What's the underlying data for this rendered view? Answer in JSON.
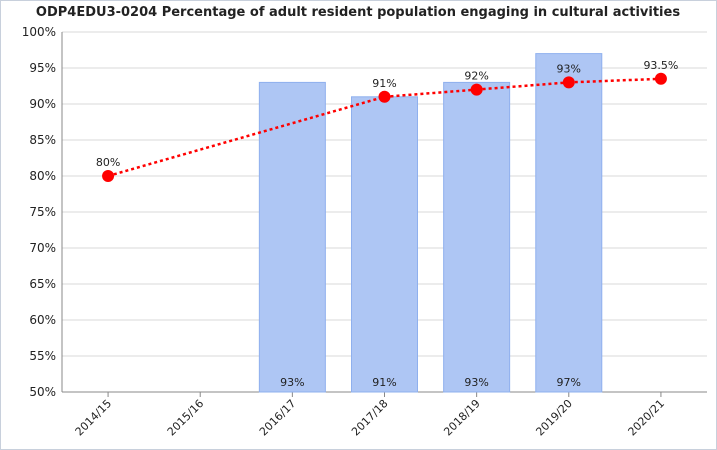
{
  "chart_data": {
    "type": "bar_line",
    "title": "ODP4EDU3-0204 Percentage of adult resident population engaging in cultural activities",
    "categories": [
      "2014/15",
      "2015/16",
      "2016/17",
      "2017/18",
      "2018/19",
      "2019/20",
      "2020/21"
    ],
    "series": [
      {
        "type": "bar",
        "color": "#aec6f4",
        "values": [
          null,
          null,
          93,
          91,
          93,
          97,
          null
        ],
        "value_labels": [
          null,
          null,
          "93%",
          "91%",
          "93%",
          "97%",
          null
        ]
      },
      {
        "type": "line",
        "color": "#ff0000",
        "values": [
          80,
          null,
          null,
          91,
          92,
          93,
          93.5
        ],
        "value_labels": [
          "80%",
          null,
          null,
          "91%",
          "92%",
          "93%",
          "93.5%"
        ]
      }
    ],
    "ylim": [
      50,
      100
    ],
    "yticks": [
      {
        "value": 50,
        "label": "50%"
      },
      {
        "value": 55,
        "label": "55%"
      },
      {
        "value": 60,
        "label": "60%"
      },
      {
        "value": 65,
        "label": "65%"
      },
      {
        "value": 70,
        "label": "70%"
      },
      {
        "value": 75,
        "label": "75%"
      },
      {
        "value": 80,
        "label": "80%"
      },
      {
        "value": 85,
        "label": "85%"
      },
      {
        "value": 90,
        "label": "90%"
      },
      {
        "value": 95,
        "label": "95%"
      },
      {
        "value": 100,
        "label": "100%"
      }
    ],
    "grid": true
  }
}
